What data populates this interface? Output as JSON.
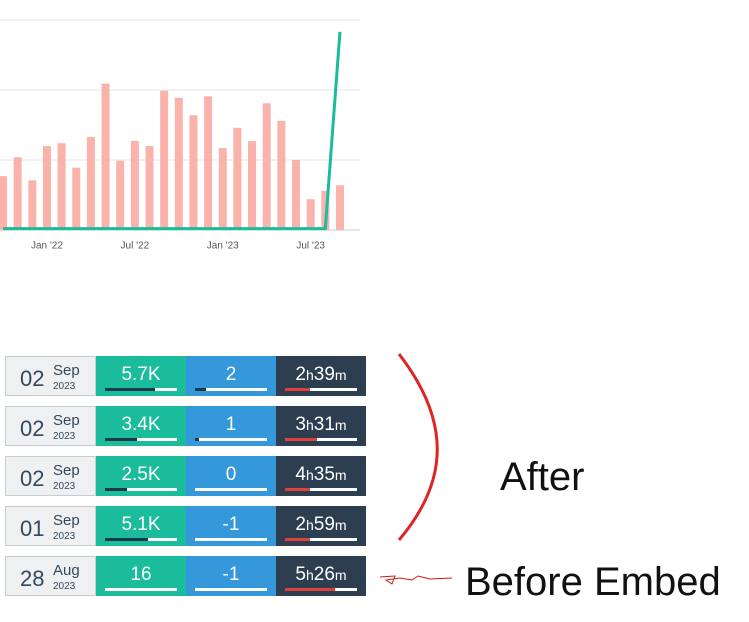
{
  "chart_data": {
    "type": "bar",
    "categories": [
      null,
      null,
      null,
      "Jan '22",
      null,
      null,
      null,
      null,
      null,
      "Jul '22",
      null,
      null,
      null,
      null,
      null,
      "Jan '23",
      null,
      null,
      null,
      null,
      null,
      "Jul '23",
      null,
      null
    ],
    "series": [
      {
        "type": "bar",
        "color": "#f9b3aa",
        "values": [
          0.77,
          1.04,
          0.71,
          1.2,
          1.24,
          0.89,
          1.33,
          2.09,
          0.99,
          1.27,
          1.2,
          1.99,
          1.89,
          1.64,
          1.91,
          1.17,
          1.46,
          1.27,
          1.81,
          1.56,
          1.0,
          0.44,
          0.56,
          0.64
        ]
      },
      {
        "type": "line",
        "color": "#1abc9c",
        "values": [
          0.02,
          0.02,
          0.02,
          0.02,
          0.02,
          0.02,
          0.02,
          0.02,
          0.02,
          0.02,
          0.02,
          0.02,
          0.02,
          0.02,
          0.02,
          0.02,
          0.02,
          0.02,
          0.02,
          0.02,
          0.02,
          0.02,
          0.02,
          2.83
        ]
      }
    ],
    "ylim": [
      0,
      3
    ],
    "ygrid": [
      1,
      2,
      3
    ],
    "grid": true
  },
  "units": {
    "hour": "h",
    "minute": "m"
  },
  "stats": {
    "rows": [
      {
        "day": "02",
        "month": "Sep",
        "year": "2023",
        "views": "5.7K",
        "views_bar": 0.7,
        "likes": "2",
        "likes_bar": 0.15,
        "hours": "2",
        "minutes": "39",
        "time_bar": 0.35
      },
      {
        "day": "02",
        "month": "Sep",
        "year": "2023",
        "views": "3.4K",
        "views_bar": 0.45,
        "likes": "1",
        "likes_bar": 0.06,
        "hours": "3",
        "minutes": "31",
        "time_bar": 0.45
      },
      {
        "day": "02",
        "month": "Sep",
        "year": "2023",
        "views": "2.5K",
        "views_bar": 0.3,
        "likes": "0",
        "likes_bar": 0,
        "hours": "4",
        "minutes": "35",
        "time_bar": 0.35
      },
      {
        "day": "01",
        "month": "Sep",
        "year": "2023",
        "views": "5.1K",
        "views_bar": 0.6,
        "likes": "-1",
        "likes_bar": 0,
        "hours": "2",
        "minutes": "59",
        "time_bar": 0.35
      },
      {
        "day": "28",
        "month": "Aug",
        "year": "2023",
        "views": "16",
        "views_bar": 0,
        "likes": "-1",
        "likes_bar": 0,
        "hours": "5",
        "minutes": "26",
        "time_bar": 0.7
      }
    ]
  },
  "annotations": {
    "after": "After",
    "before": "Before Embed"
  }
}
